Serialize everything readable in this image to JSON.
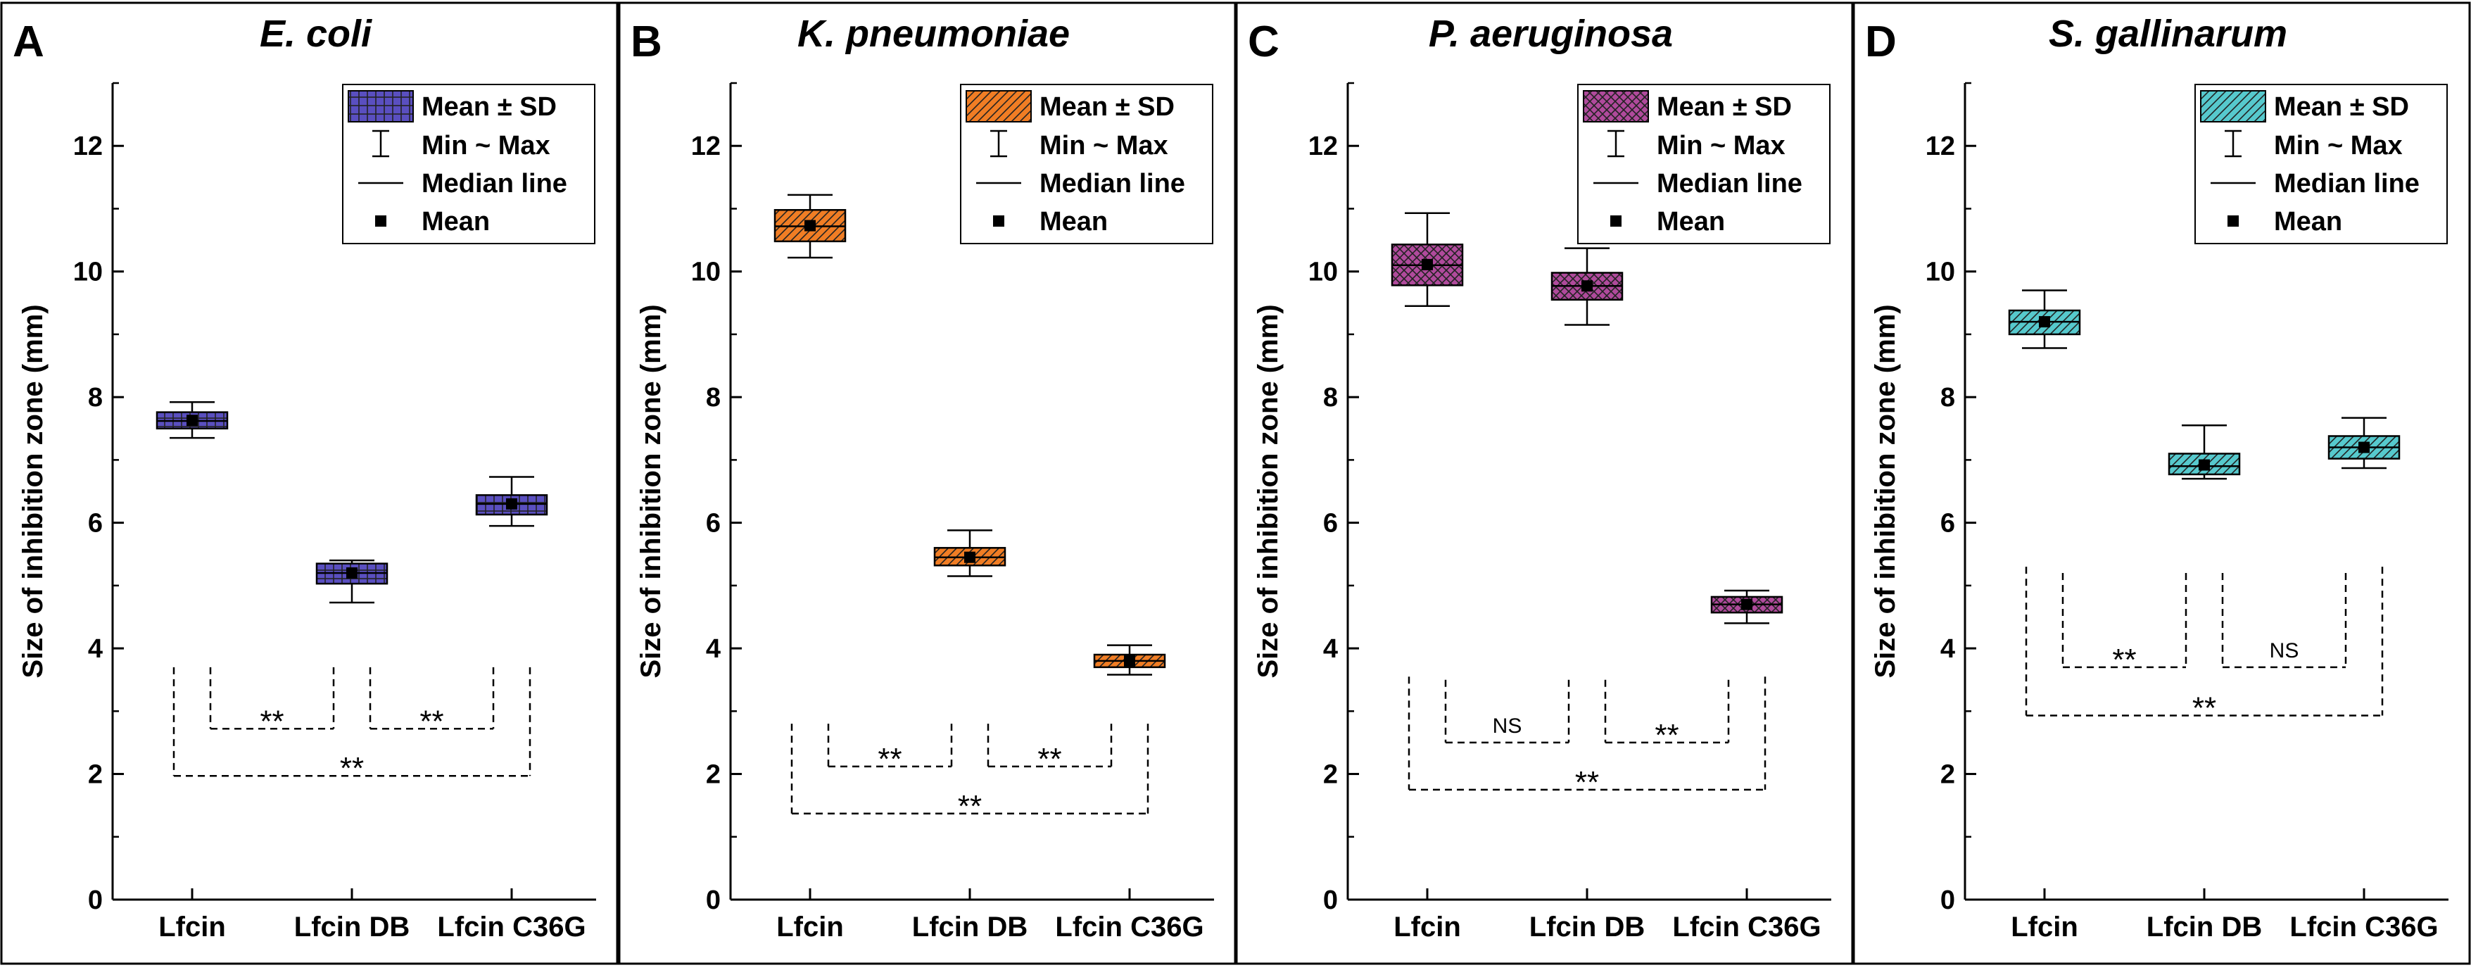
{
  "figure": {
    "y_axis_label": "Size of inhibition zone (mm)",
    "y_ticks": [
      0,
      2,
      4,
      6,
      8,
      10,
      12
    ],
    "legend": {
      "mean_sd": "Mean ± SD",
      "min_max": "Min ~ Max",
      "median": "Median line",
      "mean": "Mean"
    }
  },
  "chart_data": [
    {
      "type": "box",
      "panel_letter": "A",
      "title": "E. coli",
      "ylabel": "Size of inhibition zone (mm)",
      "ylim": [
        0,
        13
      ],
      "yticks": [
        0,
        2,
        4,
        6,
        8,
        10,
        12
      ],
      "categories": [
        "Lfcin",
        "Lfcin DB",
        "Lfcin C36G"
      ],
      "fill": "#5a4fc0",
      "pattern": "grid",
      "series": [
        {
          "category": "Lfcin",
          "min": 7.35,
          "max": 7.92,
          "box_low": 7.5,
          "box_high": 7.76,
          "median": 7.62,
          "mean": 7.63
        },
        {
          "category": "Lfcin DB",
          "min": 4.73,
          "max": 5.4,
          "box_low": 5.03,
          "box_high": 5.35,
          "median": 5.2,
          "mean": 5.2
        },
        {
          "category": "Lfcin C36G",
          "min": 5.95,
          "max": 6.73,
          "box_low": 6.13,
          "box_high": 6.44,
          "median": 6.3,
          "mean": 6.3
        }
      ],
      "comparisons": [
        {
          "from": 0,
          "to": 1,
          "level": 2.72,
          "top": 3.7,
          "label": "**"
        },
        {
          "from": 1,
          "to": 2,
          "level": 2.72,
          "top": 3.7,
          "label": "**"
        },
        {
          "from": 0,
          "to": 2,
          "level": 1.97,
          "top": 3.7,
          "label": "**"
        }
      ]
    },
    {
      "type": "box",
      "panel_letter": "B",
      "title": "K. pneumoniae",
      "ylabel": "Size of inhibition zone (mm)",
      "ylim": [
        0,
        13
      ],
      "yticks": [
        0,
        2,
        4,
        6,
        8,
        10,
        12
      ],
      "categories": [
        "Lfcin",
        "Lfcin DB",
        "Lfcin C36G"
      ],
      "fill": "#f07d24",
      "pattern": "hatch",
      "series": [
        {
          "category": "Lfcin",
          "min": 10.22,
          "max": 11.22,
          "box_low": 10.48,
          "box_high": 10.98,
          "median": 10.72,
          "mean": 10.73
        },
        {
          "category": "Lfcin DB",
          "min": 5.15,
          "max": 5.88,
          "box_low": 5.32,
          "box_high": 5.6,
          "median": 5.45,
          "mean": 5.45
        },
        {
          "category": "Lfcin C36G",
          "min": 3.58,
          "max": 4.05,
          "box_low": 3.7,
          "box_high": 3.9,
          "median": 3.8,
          "mean": 3.8
        }
      ],
      "comparisons": [
        {
          "from": 0,
          "to": 1,
          "level": 2.12,
          "top": 2.8,
          "label": "**"
        },
        {
          "from": 1,
          "to": 2,
          "level": 2.12,
          "top": 2.8,
          "label": "**"
        },
        {
          "from": 0,
          "to": 2,
          "level": 1.37,
          "top": 2.8,
          "label": "**"
        }
      ]
    },
    {
      "type": "box",
      "panel_letter": "C",
      "title": "P. aeruginosa",
      "ylabel": "Size of inhibition zone (mm)",
      "ylim": [
        0,
        13
      ],
      "yticks": [
        0,
        2,
        4,
        6,
        8,
        10,
        12
      ],
      "categories": [
        "Lfcin",
        "Lfcin DB",
        "Lfcin C36G"
      ],
      "fill": "#b04a9c",
      "pattern": "cross",
      "series": [
        {
          "category": "Lfcin",
          "min": 9.45,
          "max": 10.93,
          "box_low": 9.78,
          "box_high": 10.43,
          "median": 10.1,
          "mean": 10.11
        },
        {
          "category": "Lfcin DB",
          "min": 9.15,
          "max": 10.37,
          "box_low": 9.55,
          "box_high": 9.98,
          "median": 9.77,
          "mean": 9.77
        },
        {
          "category": "Lfcin C36G",
          "min": 4.4,
          "max": 4.92,
          "box_low": 4.57,
          "box_high": 4.82,
          "median": 4.7,
          "mean": 4.7
        }
      ],
      "comparisons": [
        {
          "from": 0,
          "to": 1,
          "level": 2.5,
          "top": 3.5,
          "label": "NS"
        },
        {
          "from": 1,
          "to": 2,
          "level": 2.5,
          "top": 3.5,
          "label": "**"
        },
        {
          "from": 0,
          "to": 2,
          "level": 1.75,
          "top": 3.55,
          "label": "**"
        }
      ]
    },
    {
      "type": "box",
      "panel_letter": "D",
      "title": "S. gallinarum",
      "ylabel": "Size of inhibition zone (mm)",
      "ylim": [
        0,
        13
      ],
      "yticks": [
        0,
        2,
        4,
        6,
        8,
        10,
        12
      ],
      "categories": [
        "Lfcin",
        "Lfcin DB",
        "Lfcin C36G"
      ],
      "fill": "#56c9cd",
      "pattern": "hatch",
      "series": [
        {
          "category": "Lfcin",
          "min": 8.78,
          "max": 9.7,
          "box_low": 9.0,
          "box_high": 9.38,
          "median": 9.2,
          "mean": 9.2
        },
        {
          "category": "Lfcin DB",
          "min": 6.7,
          "max": 7.55,
          "box_low": 6.77,
          "box_high": 7.1,
          "median": 6.9,
          "mean": 6.92
        },
        {
          "category": "Lfcin C36G",
          "min": 6.87,
          "max": 7.67,
          "box_low": 7.02,
          "box_high": 7.38,
          "median": 7.2,
          "mean": 7.2
        }
      ],
      "comparisons": [
        {
          "from": 0,
          "to": 1,
          "level": 3.7,
          "top": 5.2,
          "label": "**"
        },
        {
          "from": 1,
          "to": 2,
          "level": 3.7,
          "top": 5.2,
          "label": "NS"
        },
        {
          "from": 0,
          "to": 2,
          "level": 2.93,
          "top": 5.3,
          "label": "**"
        }
      ]
    }
  ]
}
